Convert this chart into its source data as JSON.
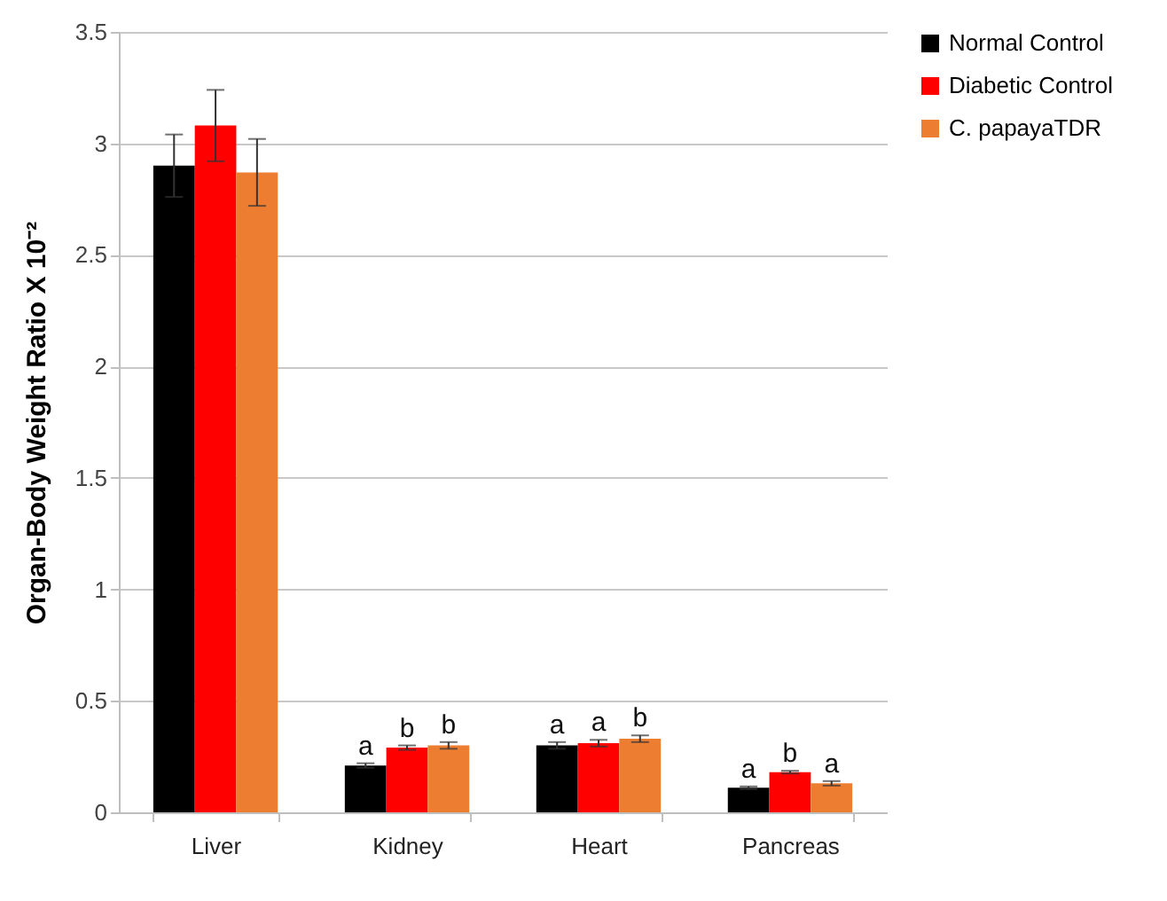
{
  "chart_data": {
    "type": "bar",
    "ylabel": "Organ-Body Weight Ratio X 10⁻²",
    "categories": [
      "Liver",
      "Kidney",
      "Heart",
      "Pancreas"
    ],
    "series": [
      {
        "name": "Normal Control",
        "color": "#000000",
        "values": [
          2.9,
          0.21,
          0.3,
          0.11
        ],
        "errors": [
          0.14,
          0.01,
          0.015,
          0.006
        ],
        "value_labels": [
          null,
          "a",
          "a",
          "a"
        ]
      },
      {
        "name": "Diabetic Control",
        "color": "#ff0000",
        "values": [
          3.08,
          0.29,
          0.31,
          0.18
        ],
        "errors": [
          0.16,
          0.01,
          0.015,
          0.006
        ],
        "value_labels": [
          null,
          "b",
          "a",
          "b"
        ]
      },
      {
        "name": "C. papayaTDR",
        "color": "#ed7d31",
        "values": [
          2.87,
          0.3,
          0.33,
          0.13
        ],
        "errors": [
          0.15,
          0.015,
          0.015,
          0.01
        ],
        "value_labels": [
          null,
          "b",
          "b",
          "a"
        ]
      }
    ],
    "ylim": [
      0,
      3.5
    ],
    "yticks": [
      0,
      0.5,
      1,
      1.5,
      2,
      2.5,
      3,
      3.5
    ],
    "grid": "y",
    "legend": "right"
  }
}
